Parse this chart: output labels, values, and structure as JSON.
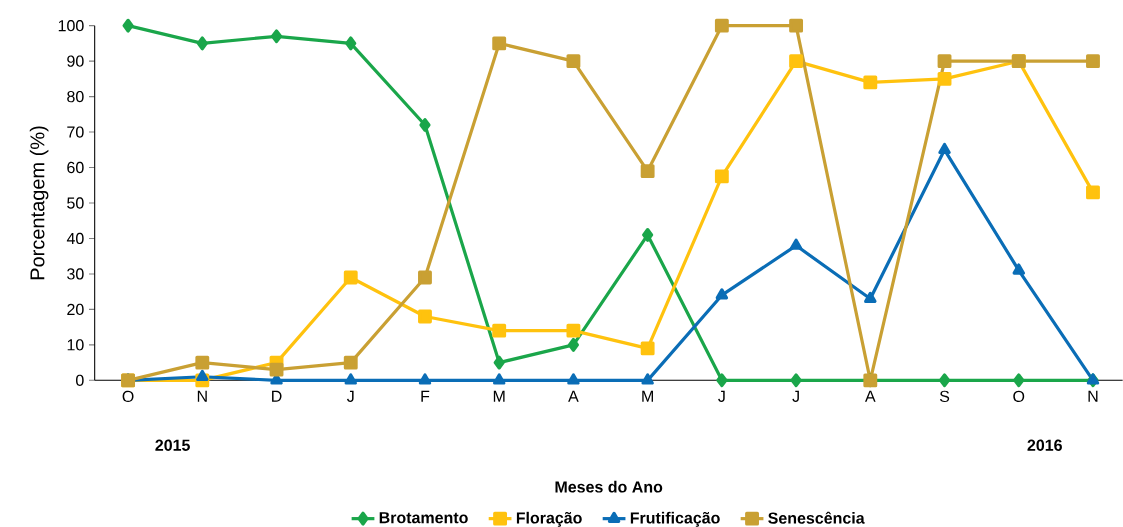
{
  "chart_data": {
    "type": "line",
    "xlabel": "Meses do Ano",
    "ylabel": "Porcentagem (%)",
    "categories": [
      "O",
      "N",
      "D",
      "J",
      "F",
      "M",
      "A",
      "M",
      "J",
      "J",
      "A",
      "S",
      "O",
      "N"
    ],
    "ylim": [
      0,
      100
    ],
    "yticks": [
      0,
      10,
      20,
      30,
      40,
      50,
      60,
      70,
      80,
      90,
      100
    ],
    "grid": false,
    "legend": "bottom",
    "annotations": [
      "2015",
      "2016"
    ],
    "series": [
      {
        "name": "Brotamento",
        "color": "#1aa64a",
        "marker": "diamond",
        "values": [
          100,
          95,
          97,
          95,
          72,
          5,
          10,
          41,
          0,
          0,
          0,
          0,
          0,
          0
        ]
      },
      {
        "name": "Floração",
        "color": "#ffc20e",
        "marker": "square",
        "values": [
          0,
          0,
          5,
          29,
          18,
          14,
          14,
          9,
          57.5,
          90,
          84,
          85,
          90,
          53
        ]
      },
      {
        "name": "Frutificação",
        "color": "#0a6db6",
        "marker": "triangle",
        "values": [
          0,
          1,
          0,
          0,
          0,
          0,
          0,
          0,
          24,
          38,
          23,
          65,
          31,
          0
        ]
      },
      {
        "name": "Senescência",
        "color": "#c9a033",
        "marker": "square",
        "values": [
          0,
          5,
          3,
          5,
          29,
          95,
          90,
          59,
          100,
          100,
          0,
          90,
          90,
          90
        ]
      }
    ]
  }
}
